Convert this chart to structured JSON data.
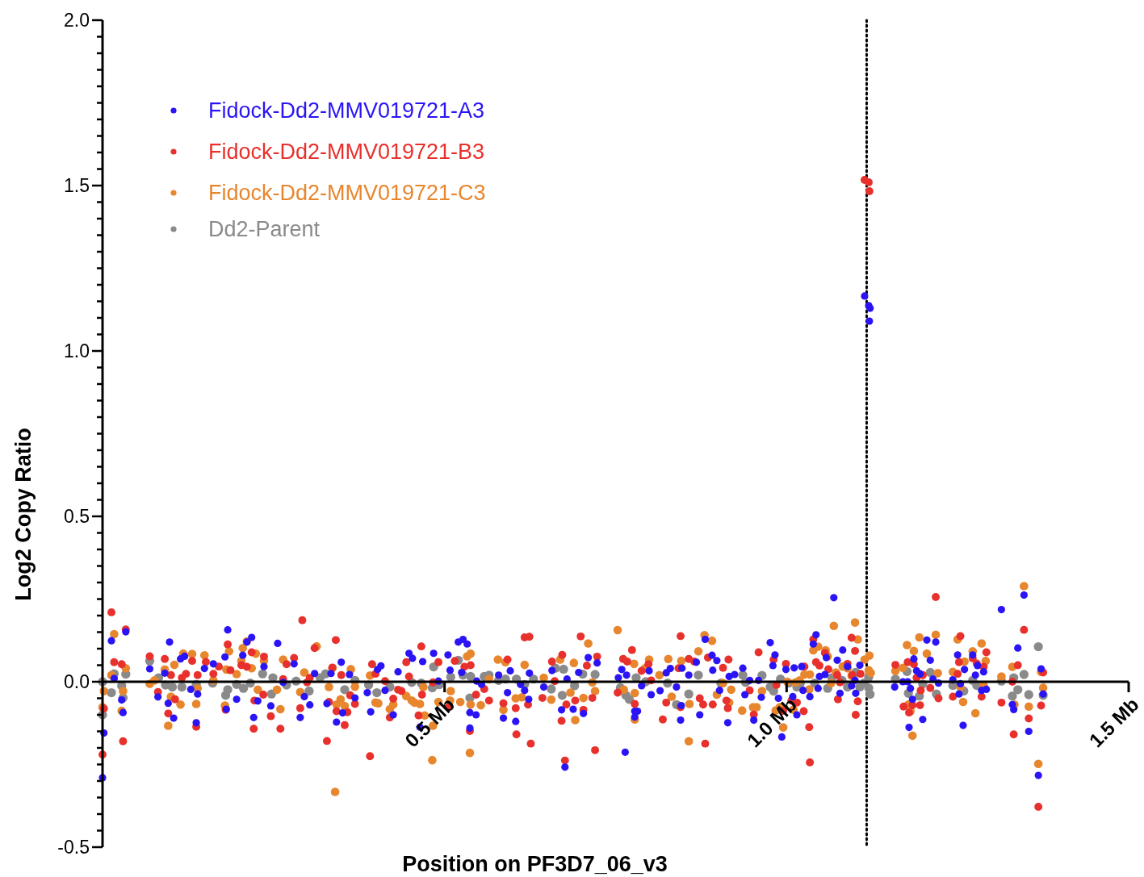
{
  "chart_data": {
    "type": "scatter",
    "xlabel": "Position on PF3D7_06_v3",
    "ylabel": "Log2 Copy Ratio",
    "xlim": [
      0,
      1.5
    ],
    "ylim": [
      -0.5,
      2.0
    ],
    "xticks": [
      {
        "value": 0.5,
        "label": "0.5 Mb"
      },
      {
        "value": 1.0,
        "label": "1.0 Mb"
      },
      {
        "value": 1.5,
        "label": "1.5 Mb"
      }
    ],
    "yticks": [
      {
        "value": 2.0,
        "label": "2.0"
      },
      {
        "value": 1.95,
        "label": null
      },
      {
        "value": 1.9,
        "label": null
      },
      {
        "value": 1.85,
        "label": null
      },
      {
        "value": 1.8,
        "label": null
      },
      {
        "value": 1.75,
        "label": null
      },
      {
        "value": 1.7,
        "label": null
      },
      {
        "value": 1.65,
        "label": null
      },
      {
        "value": 1.6,
        "label": null
      },
      {
        "value": 1.55,
        "label": null
      },
      {
        "value": 1.5,
        "label": "1.5"
      },
      {
        "value": 1.45,
        "label": null
      },
      {
        "value": 1.4,
        "label": null
      },
      {
        "value": 1.35,
        "label": null
      },
      {
        "value": 1.3,
        "label": null
      },
      {
        "value": 1.25,
        "label": null
      },
      {
        "value": 1.2,
        "label": null
      },
      {
        "value": 1.15,
        "label": null
      },
      {
        "value": 1.1,
        "label": null
      },
      {
        "value": 1.05,
        "label": null
      },
      {
        "value": 1.0,
        "label": "1.0"
      },
      {
        "value": 0.95,
        "label": null
      },
      {
        "value": 0.9,
        "label": null
      },
      {
        "value": 0.85,
        "label": null
      },
      {
        "value": 0.8,
        "label": null
      },
      {
        "value": 0.75,
        "label": null
      },
      {
        "value": 0.7,
        "label": null
      },
      {
        "value": 0.65,
        "label": null
      },
      {
        "value": 0.6,
        "label": null
      },
      {
        "value": 0.55,
        "label": null
      },
      {
        "value": 0.5,
        "label": "0.5"
      },
      {
        "value": 0.45,
        "label": null
      },
      {
        "value": 0.4,
        "label": null
      },
      {
        "value": 0.35,
        "label": null
      },
      {
        "value": 0.3,
        "label": null
      },
      {
        "value": 0.25,
        "label": null
      },
      {
        "value": 0.2,
        "label": null
      },
      {
        "value": 0.15,
        "label": null
      },
      {
        "value": 0.1,
        "label": null
      },
      {
        "value": 0.05,
        "label": null
      },
      {
        "value": 0,
        "label": "0.0"
      },
      {
        "value": -0.05,
        "label": null
      },
      {
        "value": -0.1,
        "label": null
      },
      {
        "value": -0.15,
        "label": null
      },
      {
        "value": -0.2,
        "label": null
      },
      {
        "value": -0.25,
        "label": null
      },
      {
        "value": -0.3,
        "label": null
      },
      {
        "value": -0.35,
        "label": null
      },
      {
        "value": -0.4,
        "label": null
      },
      {
        "value": -0.45,
        "label": null
      },
      {
        "value": -0.5,
        "label": "-0.5"
      }
    ],
    "legend": "top left",
    "marker": "circle",
    "ref_lines": [
      {
        "axis": "x",
        "value": 1.117,
        "line_style": "dotted",
        "color": "#000000"
      }
    ],
    "series": [
      {
        "name": "Fidock-Dd2-MMV019721-A3",
        "color": "#2a14f5",
        "x": [
          0.0,
          0.002,
          0.013,
          0.017,
          0.028,
          0.03,
          0.034,
          0.069,
          0.081,
          0.091,
          0.096,
          0.098,
          0.104,
          0.114,
          0.12,
          0.129,
          0.137,
          0.139,
          0.149,
          0.162,
          0.179,
          0.181,
          0.183,
          0.196,
          0.205,
          0.211,
          0.218,
          0.221,
          0.227,
          0.236,
          0.246,
          0.256,
          0.264,
          0.28,
          0.289,
          0.295,
          0.303,
          0.31,
          0.328,
          0.334,
          0.342,
          0.349,
          0.351,
          0.361,
          0.369,
          0.387,
          0.392,
          0.402,
          0.407,
          0.413,
          0.425,
          0.432,
          0.448,
          0.453,
          0.464,
          0.468,
          0.484,
          0.491,
          0.505,
          0.508,
          0.52,
          0.527,
          0.533,
          0.525,
          0.537,
          0.546,
          0.537,
          0.547,
          0.554,
          0.579,
          0.586,
          0.592,
          0.596,
          0.604,
          0.611,
          0.617,
          0.623,
          0.624,
          0.645,
          0.657,
          0.671,
          0.676,
          0.679,
          0.688,
          0.696,
          0.703,
          0.71,
          0.723,
          0.754,
          0.764,
          0.759,
          0.766,
          0.778,
          0.782,
          0.778,
          0.788,
          0.799,
          0.802,
          0.815,
          0.824,
          0.83,
          0.839,
          0.845,
          0.846,
          0.847,
          0.857,
          0.868,
          0.873,
          0.881,
          0.891,
          0.892,
          0.898,
          0.902,
          0.914,
          0.916,
          0.924,
          0.936,
          0.939,
          0.946,
          0.952,
          0.959,
          0.963,
          0.976,
          0.983,
          0.98,
          0.988,
          0.993,
          0.999,
          1.011,
          1.009,
          1.015,
          1.022,
          1.024,
          1.034,
          1.039,
          1.043,
          1.048,
          1.046,
          1.056,
          1.058,
          1.069,
          1.074,
          1.078,
          1.082,
          1.089,
          1.095,
          1.1,
          1.101,
          1.107,
          1.114,
          1.12,
          1.122,
          1.121,
          1.158,
          1.17,
          1.177,
          1.181,
          1.179,
          1.184,
          1.186,
          1.19,
          1.195,
          1.199,
          1.205,
          1.21,
          1.214,
          1.218,
          1.222,
          1.243,
          1.25,
          1.252,
          1.254,
          1.258,
          1.26,
          1.272,
          1.276,
          1.279,
          1.285,
          1.288,
          1.292,
          1.314,
          1.33,
          1.332,
          1.338,
          1.347,
          1.354,
          1.368,
          1.372,
          1.375
        ],
        "values": [
          -0.29,
          -0.155,
          0.124,
          0.01,
          -0.055,
          -0.093,
          0.151,
          0.039,
          -0.046,
          0.026,
          -0.065,
          0.12,
          -0.11,
          0.069,
          0.077,
          -0.023,
          -0.124,
          -0.037,
          0.04,
          0.054,
          0.075,
          -0.083,
          0.157,
          -0.053,
          0.08,
          0.12,
          0.134,
          -0.108,
          -0.058,
          0.046,
          -0.073,
          0.116,
          -0.002,
          0.054,
          -0.108,
          -0.045,
          -0.07,
          0.025,
          -0.066,
          0.025,
          -0.122,
          0.059,
          -0.094,
          0.022,
          -0.049,
          -0.033,
          -0.091,
          0.037,
          0.048,
          -0.026,
          -0.1,
          0.03,
          0.086,
          0.071,
          -0.137,
          0.061,
          0.086,
          0.002,
          0.081,
          0.035,
          0.12,
          0.128,
          0.114,
          0.028,
          -0.093,
          -0.1,
          -0.14,
          0.002,
          -0.008,
          0.02,
          -0.11,
          -0.033,
          0.033,
          -0.12,
          -0.008,
          -0.026,
          -0.053,
          0.026,
          -0.016,
          0.034,
          -0.085,
          -0.258,
          0.008,
          -0.083,
          0.028,
          -0.096,
          0.073,
          0.057,
          0.012,
          -0.213,
          0.037,
          0.02,
          -0.089,
          -0.089,
          -0.107,
          -0.012,
          0.033,
          -0.039,
          -0.027,
          0.027,
          0.04,
          -0.016,
          -0.116,
          -0.072,
          0.041,
          0.02,
          0.059,
          -0.1,
          0.128,
          0.08,
          0.035,
          0.064,
          -0.026,
          -0.124,
          0.016,
          0.022,
          0.041,
          -0.039,
          0.004,
          -0.116,
          0.004,
          -0.047,
          0.118,
          0.081,
          0.049,
          -0.05,
          -0.167,
          0.037,
          0.042,
          -0.045,
          -0.1,
          0.046,
          -0.026,
          -0.045,
          0.114,
          0.142,
          0.016,
          -0.02,
          0.022,
          0.073,
          0.254,
          0.065,
          -0.035,
          0.096,
          0.046,
          -0.012,
          0.004,
          -0.035,
          0.05,
          1.166,
          1.137,
          1.129,
          1.09,
          -0.016,
          0,
          0,
          -0.02,
          -0.138,
          -0.053,
          0.069,
          0.033,
          0.024,
          -0.114,
          0.126,
          0.065,
          0.008,
          0.12,
          -0.004,
          0.006,
          0.081,
          -0.037,
          -0.006,
          -0.132,
          0.037,
          0.081,
          0.02,
          0.049,
          -0.026,
          0.03,
          -0.023,
          0.218,
          -0.069,
          -0.084,
          0.102,
          0.262,
          -0.15,
          -0.283,
          0.039,
          -0.037
        ]
      },
      {
        "name": "Fidock-Dd2-MMV019721-B3",
        "color": "#e8302c",
        "x": [
          0.0,
          0.002,
          0.013,
          0.017,
          0.028,
          0.03,
          0.034,
          0.069,
          0.081,
          0.091,
          0.096,
          0.1,
          0.106,
          0.116,
          0.122,
          0.131,
          0.137,
          0.139,
          0.151,
          0.162,
          0.17,
          0.18,
          0.183,
          0.187,
          0.203,
          0.211,
          0.218,
          0.221,
          0.222,
          0.236,
          0.235,
          0.246,
          0.26,
          0.264,
          0.269,
          0.28,
          0.289,
          0.292,
          0.299,
          0.303,
          0.31,
          0.328,
          0.331,
          0.336,
          0.341,
          0.342,
          0.349,
          0.354,
          0.358,
          0.362,
          0.369,
          0.391,
          0.394,
          0.399,
          0.413,
          0.42,
          0.425,
          0.432,
          0.437,
          0.444,
          0.448,
          0.462,
          0.466,
          0.467,
          0.483,
          0.491,
          0.506,
          0.515,
          0.529,
          0.538,
          0.537,
          0.546,
          0.558,
          0.565,
          0.586,
          0.592,
          0.604,
          0.605,
          0.617,
          0.624,
          0.622,
          0.626,
          0.643,
          0.657,
          0.661,
          0.672,
          0.678,
          0.671,
          0.676,
          0.691,
          0.699,
          0.703,
          0.708,
          0.716,
          0.72,
          0.723,
          0.753,
          0.761,
          0.774,
          0.778,
          0.767,
          0.788,
          0.798,
          0.802,
          0.819,
          0.824,
          0.845,
          0.845,
          0.842,
          0.857,
          0.865,
          0.873,
          0.878,
          0.881,
          0.885,
          0.892,
          0.907,
          0.912,
          0.915,
          0.914,
          0.946,
          0.952,
          0.959,
          0.981,
          0.985,
          0.995,
          0.999,
          1.007,
          1.015,
          1.025,
          1.033,
          1.034,
          1.026,
          1.039,
          1.043,
          1.048,
          1.056,
          1.061,
          1.074,
          1.075,
          1.078,
          1.089,
          1.095,
          1.096,
          1.1,
          1.104,
          1.101,
          1.108,
          1.114,
          1.12,
          1.121,
          1.159,
          1.171,
          1.177,
          1.179,
          1.184,
          1.186,
          1.19,
          1.195,
          1.196,
          1.199,
          1.21,
          1.218,
          1.222,
          1.243,
          1.25,
          1.252,
          1.254,
          1.272,
          1.278,
          1.285,
          1.288,
          1.292,
          1.314,
          1.33,
          1.332,
          1.338,
          1.347,
          1.354,
          1.372,
          1.368,
          1.375
        ],
        "values": [
          -0.22,
          -0.081,
          0.21,
          0.059,
          0.053,
          -0.18,
          0.158,
          0.077,
          -0.031,
          0.069,
          -0.096,
          0.02,
          -0.053,
          0.012,
          0.024,
          0.063,
          -0.136,
          0.02,
          0.06,
          0.024,
          0.046,
          -0.085,
          0.113,
          0.035,
          0.05,
          0.045,
          0.089,
          -0.142,
          -0.057,
          0.076,
          -0.039,
          -0.104,
          -0.142,
          0.008,
          0.053,
          0.072,
          -0.08,
          0.186,
          -0.002,
          0.012,
          0.102,
          -0.179,
          -0.061,
          0.043,
          0.126,
          -0.089,
          0.02,
          -0.131,
          -0.092,
          -0.041,
          -0.067,
          -0.225,
          0.053,
          0.024,
          0.002,
          -0.108,
          -0.051,
          -0.024,
          -0.028,
          0.059,
          0.016,
          -0.102,
          0.107,
          -0.039,
          -0.002,
          0.059,
          -0.077,
          0.063,
          0.045,
          0.05,
          -0.149,
          -0.039,
          -0.022,
          -0.057,
          -0.065,
          0.067,
          -0.08,
          -0.159,
          0.134,
          0.136,
          -0.069,
          -0.187,
          -0.049,
          0.061,
          0.002,
          0.081,
          -0.069,
          -0.118,
          -0.238,
          -0.057,
          0.137,
          -0.085,
          0.049,
          -0.049,
          -0.207,
          0.076,
          -0.033,
          0.069,
          0.096,
          -0.067,
          0.061,
          0.033,
          0.053,
          0.004,
          -0.114,
          -0.063,
          0.138,
          -0.077,
          0.041,
          0.069,
          0.061,
          -0.05,
          -0.069,
          -0.187,
          0.073,
          -0.069,
          0.042,
          -0.057,
          0.067,
          -0.08,
          -0.026,
          -0.099,
          0.089,
          0.067,
          -0.01,
          -0.088,
          0.054,
          -0.057,
          -0.063,
          -0.089,
          -0.137,
          -0.244,
          0.046,
          0.128,
          0.059,
          0.049,
          0.087,
          0.038,
          0.02,
          -0.053,
          -0.002,
          0.054,
          0.133,
          0.02,
          0.093,
          -0.059,
          -0.1,
          0.024,
          1.517,
          1.51,
          1.483,
          0.051,
          -0.075,
          0.059,
          -0.093,
          -0.071,
          0.053,
          0.012,
          -0.071,
          -0.026,
          0.02,
          -0.019,
          0.256,
          -0.05,
          -0.045,
          0.024,
          0.059,
          0.138,
          0.071,
          0.055,
          -0.045,
          0.045,
          0.089,
          -0.063,
          0,
          -0.159,
          0.05,
          0.157,
          -0.111,
          -0.072,
          -0.378,
          0.028
        ]
      },
      {
        "name": "Fidock-Dd2-MMV019721-C3",
        "color": "#e8862e",
        "x": [
          0.002,
          0.0,
          0.013,
          0.017,
          0.028,
          0.03,
          0.034,
          0.069,
          0.076,
          0.091,
          0.096,
          0.1,
          0.105,
          0.114,
          0.118,
          0.131,
          0.137,
          0.139,
          0.149,
          0.162,
          0.179,
          0.181,
          0.185,
          0.196,
          0.203,
          0.205,
          0.211,
          0.218,
          0.224,
          0.227,
          0.236,
          0.255,
          0.26,
          0.264,
          0.289,
          0.295,
          0.313,
          0.331,
          0.336,
          0.342,
          0.348,
          0.354,
          0.363,
          0.369,
          0.34,
          0.391,
          0.399,
          0.403,
          0.42,
          0.425,
          0.444,
          0.452,
          0.456,
          0.464,
          0.469,
          0.471,
          0.482,
          0.483,
          0.491,
          0.508,
          0.509,
          0.523,
          0.533,
          0.538,
          0.538,
          0.537,
          0.553,
          0.565,
          0.578,
          0.586,
          0.589,
          0.604,
          0.613,
          0.617,
          0.645,
          0.656,
          0.669,
          0.684,
          0.689,
          0.691,
          0.703,
          0.71,
          0.716,
          0.72,
          0.753,
          0.762,
          0.777,
          0.778,
          0.778,
          0.793,
          0.799,
          0.814,
          0.827,
          0.832,
          0.846,
          0.857,
          0.858,
          0.871,
          0.88,
          0.891,
          0.898,
          0.907,
          0.916,
          0.919,
          0.935,
          0.951,
          0.956,
          0.964,
          0.984,
          0.99,
          0.995,
          1.001,
          1.01,
          1.013,
          1.019,
          1.026,
          1.033,
          1.034,
          1.039,
          1.046,
          1.057,
          1.06,
          1.065,
          1.069,
          1.072,
          1.082,
          1.089,
          1.095,
          1.1,
          1.104,
          1.114,
          1.121,
          1.12,
          1.123,
          1.159,
          1.17,
          1.176,
          1.178,
          1.181,
          1.184,
          1.186,
          1.194,
          1.205,
          1.218,
          1.221,
          1.243,
          1.25,
          1.254,
          1.258,
          1.26,
          1.272,
          1.276,
          1.285,
          1.288,
          1.291,
          1.314,
          1.33,
          1.333,
          1.347,
          1.354,
          1.368,
          1.372,
          1.375
        ],
        "values": [
          -0.028,
          -0.077,
          0.02,
          0.144,
          -0.088,
          -0.028,
          0.041,
          -0.006,
          0.004,
          0.037,
          -0.133,
          -0.045,
          0.051,
          -0.069,
          0.085,
          0.084,
          -0.067,
          -0.02,
          0.08,
          0.004,
          -0.072,
          0.037,
          0.092,
          0.023,
          0.063,
          0.102,
          0.122,
          0.041,
          0.085,
          -0.024,
          0.063,
          -0.024,
          -0.083,
          0.067,
          -0.031,
          0.028,
          0.107,
          -0.016,
          0.041,
          -0.069,
          -0.053,
          -0.073,
          0.038,
          -0.015,
          -0.333,
          0.019,
          -0.063,
          -0.065,
          -0.083,
          -0.069,
          -0.043,
          -0.057,
          -0.063,
          -0.067,
          -0.016,
          -0.102,
          -0.237,
          -0.133,
          -0.061,
          -0.057,
          -0.028,
          -0.061,
          0.077,
          0.085,
          -0.069,
          -0.215,
          -0.071,
          0.008,
          0.067,
          -0.085,
          0.059,
          -0.05,
          -0.047,
          0.051,
          0.012,
          -0.054,
          0.067,
          -0.033,
          0.057,
          -0.116,
          -0.049,
          0.116,
          -0.002,
          -0.028,
          0.156,
          -0.024,
          0.054,
          -0.034,
          -0.114,
          0.041,
          0.067,
          0.02,
          0.069,
          -0.045,
          0.063,
          -0.18,
          -0.067,
          0.092,
          0.141,
          0.124,
          -0.039,
          -0.004,
          -0.063,
          -0.024,
          -0.087,
          -0.077,
          -0.077,
          -0.028,
          -0.087,
          -0.077,
          -0.138,
          0,
          -0.084,
          -0.002,
          0.004,
          0.022,
          -0.023,
          0.022,
          0.095,
          0.106,
          0.095,
          0.077,
          -0.004,
          0.169,
          0.028,
          0.046,
          0.041,
          0.018,
          0.179,
          0.128,
          0.067,
          0.079,
          0.035,
          0.027,
          0.033,
          0.042,
          0.111,
          -0.069,
          -0.089,
          -0.163,
          0.093,
          0.134,
          0.085,
          0.142,
          0.026,
          0.03,
          0.128,
          -0.016,
          -0.061,
          0.061,
          0.092,
          -0.095,
          0.116,
          -0.011,
          0.063,
          0.016,
          0.045,
          -0.069,
          0.289,
          -0.075,
          -0.248,
          0.03,
          -0.018
        ]
      },
      {
        "name": "Dd2-Parent",
        "color": "#8a8a8a",
        "x": [
          0.0,
          0.0,
          0.013,
          0.017,
          0.028,
          0.03,
          0.034,
          0.069,
          0.082,
          0.092,
          0.102,
          0.116,
          0.137,
          0.161,
          0.18,
          0.183,
          0.196,
          0.206,
          0.216,
          0.234,
          0.247,
          0.249,
          0.269,
          0.283,
          0.302,
          0.318,
          0.326,
          0.354,
          0.369,
          0.389,
          0.401,
          0.42,
          0.452,
          0.466,
          0.482,
          0.484,
          0.492,
          0.509,
          0.52,
          0.527,
          0.538,
          0.537,
          0.558,
          0.565,
          0.579,
          0.589,
          0.605,
          0.617,
          0.63,
          0.656,
          0.662,
          0.672,
          0.674,
          0.69,
          0.702,
          0.72,
          0.757,
          0.765,
          0.77,
          0.78,
          0.794,
          0.826,
          0.839,
          0.857,
          0.871,
          0.904,
          0.936,
          0.94,
          0.964,
          0.976,
          0.981,
          0.991,
          1.003,
          1.015,
          1.02,
          1.041,
          1.06,
          1.066,
          1.081,
          1.089,
          1.101,
          1.107,
          1.113,
          1.12,
          1.122,
          1.12,
          1.159,
          1.176,
          1.178,
          1.194,
          1.199,
          1.21,
          1.219,
          1.243,
          1.259,
          1.272,
          1.278,
          1.314,
          1.33,
          1.332,
          1.338,
          1.347,
          1.354,
          1.368,
          1.375
        ],
        "values": [
          0,
          -0.1,
          -0.033,
          0.024,
          -0.012,
          -0.049,
          0.023,
          0.063,
          0.012,
          -0.01,
          -0.016,
          -0.016,
          -0.008,
          -0.004,
          -0.041,
          -0.024,
          -0.008,
          -0.02,
          -0.004,
          0.024,
          -0.037,
          0.012,
          -0.01,
          0.002,
          -0.028,
          0.012,
          0.024,
          -0.024,
          0.004,
          -0.01,
          -0.033,
          -0.016,
          -0.002,
          -0.004,
          -0.018,
          0.045,
          -0.009,
          0.014,
          0.065,
          0.02,
          0.016,
          -0.049,
          0.016,
          0.02,
          0.004,
          0.008,
          0.008,
          -0.008,
          0.008,
          -0.022,
          0.041,
          -0.041,
          0.038,
          -0.012,
          0.023,
          0.022,
          -0.018,
          -0.041,
          -0.053,
          0.012,
          0,
          -0.004,
          -0.069,
          -0.037,
          0.02,
          -0.004,
          0.02,
          -0.002,
          0.019,
          -0.016,
          -0.028,
          0.008,
          -0.004,
          -0.016,
          -0.004,
          -0.004,
          -0.02,
          0.012,
          0.004,
          -0.016,
          0.028,
          -0.016,
          -0.004,
          -0.019,
          -0.038,
          0.014,
          0.008,
          0.031,
          -0.035,
          -0.043,
          -0.007,
          0.028,
          -0.037,
          -0.011,
          -0.028,
          0.004,
          -0.011,
          0.002,
          -0.043,
          0.012,
          -0.024,
          0.022,
          -0.039,
          0.106,
          -0.041
        ]
      }
    ]
  }
}
